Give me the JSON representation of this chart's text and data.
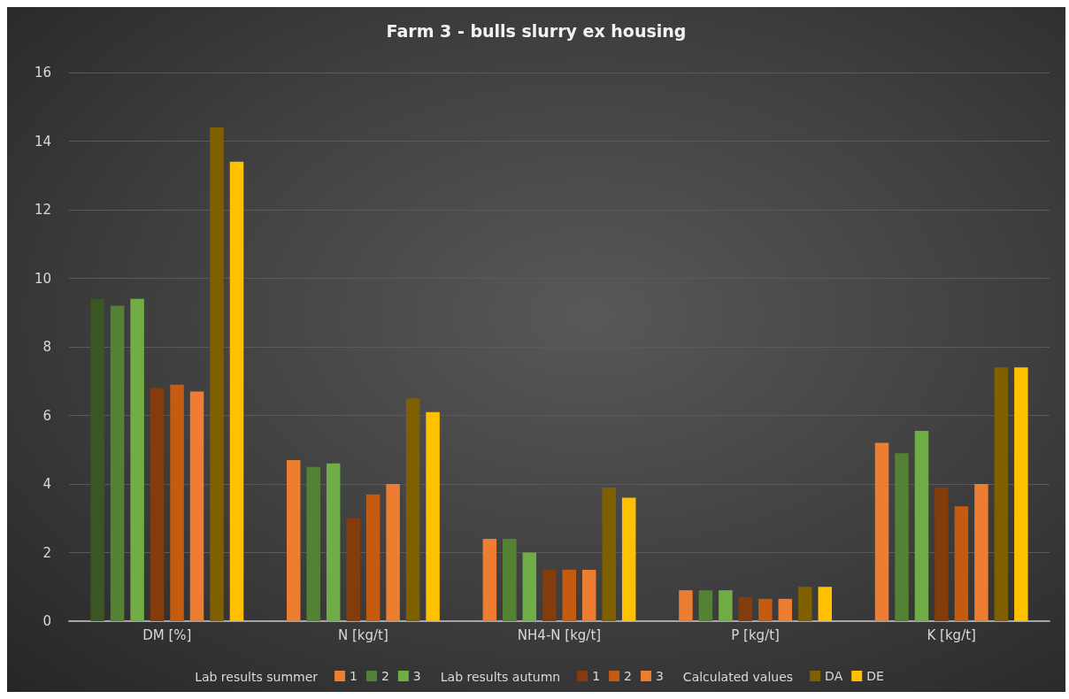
{
  "chart_data": {
    "type": "bar",
    "title": "Farm 3 - bulls slurry ex housing",
    "categories": [
      "DM [%]",
      "N [kg/t]",
      "NH4-N [kg/t]",
      "P [kg/t]",
      "K [kg/t]"
    ],
    "series": [
      {
        "name": "1",
        "color": "#ed7d31",
        "colors": [
          "#3a5622",
          "#ed7d31",
          "#ed7d31",
          "#ed7d31",
          "#ed7d31"
        ],
        "values": [
          9.4,
          4.7,
          2.4,
          0.9,
          5.2
        ]
      },
      {
        "name": "2",
        "color": "#548235",
        "values": [
          9.2,
          4.5,
          2.4,
          0.9,
          4.9
        ]
      },
      {
        "name": "3",
        "color": "#70ad47",
        "values": [
          9.4,
          4.6,
          2.0,
          0.9,
          5.55
        ]
      },
      {
        "name": "1",
        "color": "#843c0c",
        "values": [
          6.8,
          3.0,
          1.5,
          0.7,
          3.9
        ]
      },
      {
        "name": "2",
        "color": "#c55a11",
        "values": [
          6.9,
          3.7,
          1.5,
          0.65,
          3.35
        ]
      },
      {
        "name": "3",
        "color": "#ed7d31",
        "values": [
          6.7,
          4.0,
          1.5,
          0.65,
          4.0
        ]
      },
      {
        "name": "DA",
        "color": "#7f6000",
        "values": [
          14.4,
          6.5,
          3.9,
          1.0,
          7.4
        ]
      },
      {
        "name": "DE",
        "color": "#ffc000",
        "values": [
          13.4,
          6.1,
          3.6,
          1.0,
          7.4
        ]
      }
    ],
    "annotations": [
      "Lab results summer",
      "Lab results autumn",
      "Calculated values"
    ],
    "ylim": [
      0,
      16
    ],
    "yticks": [
      0,
      2,
      4,
      6,
      8,
      10,
      12,
      14,
      16
    ],
    "grid": "y",
    "legend": "bottom"
  }
}
